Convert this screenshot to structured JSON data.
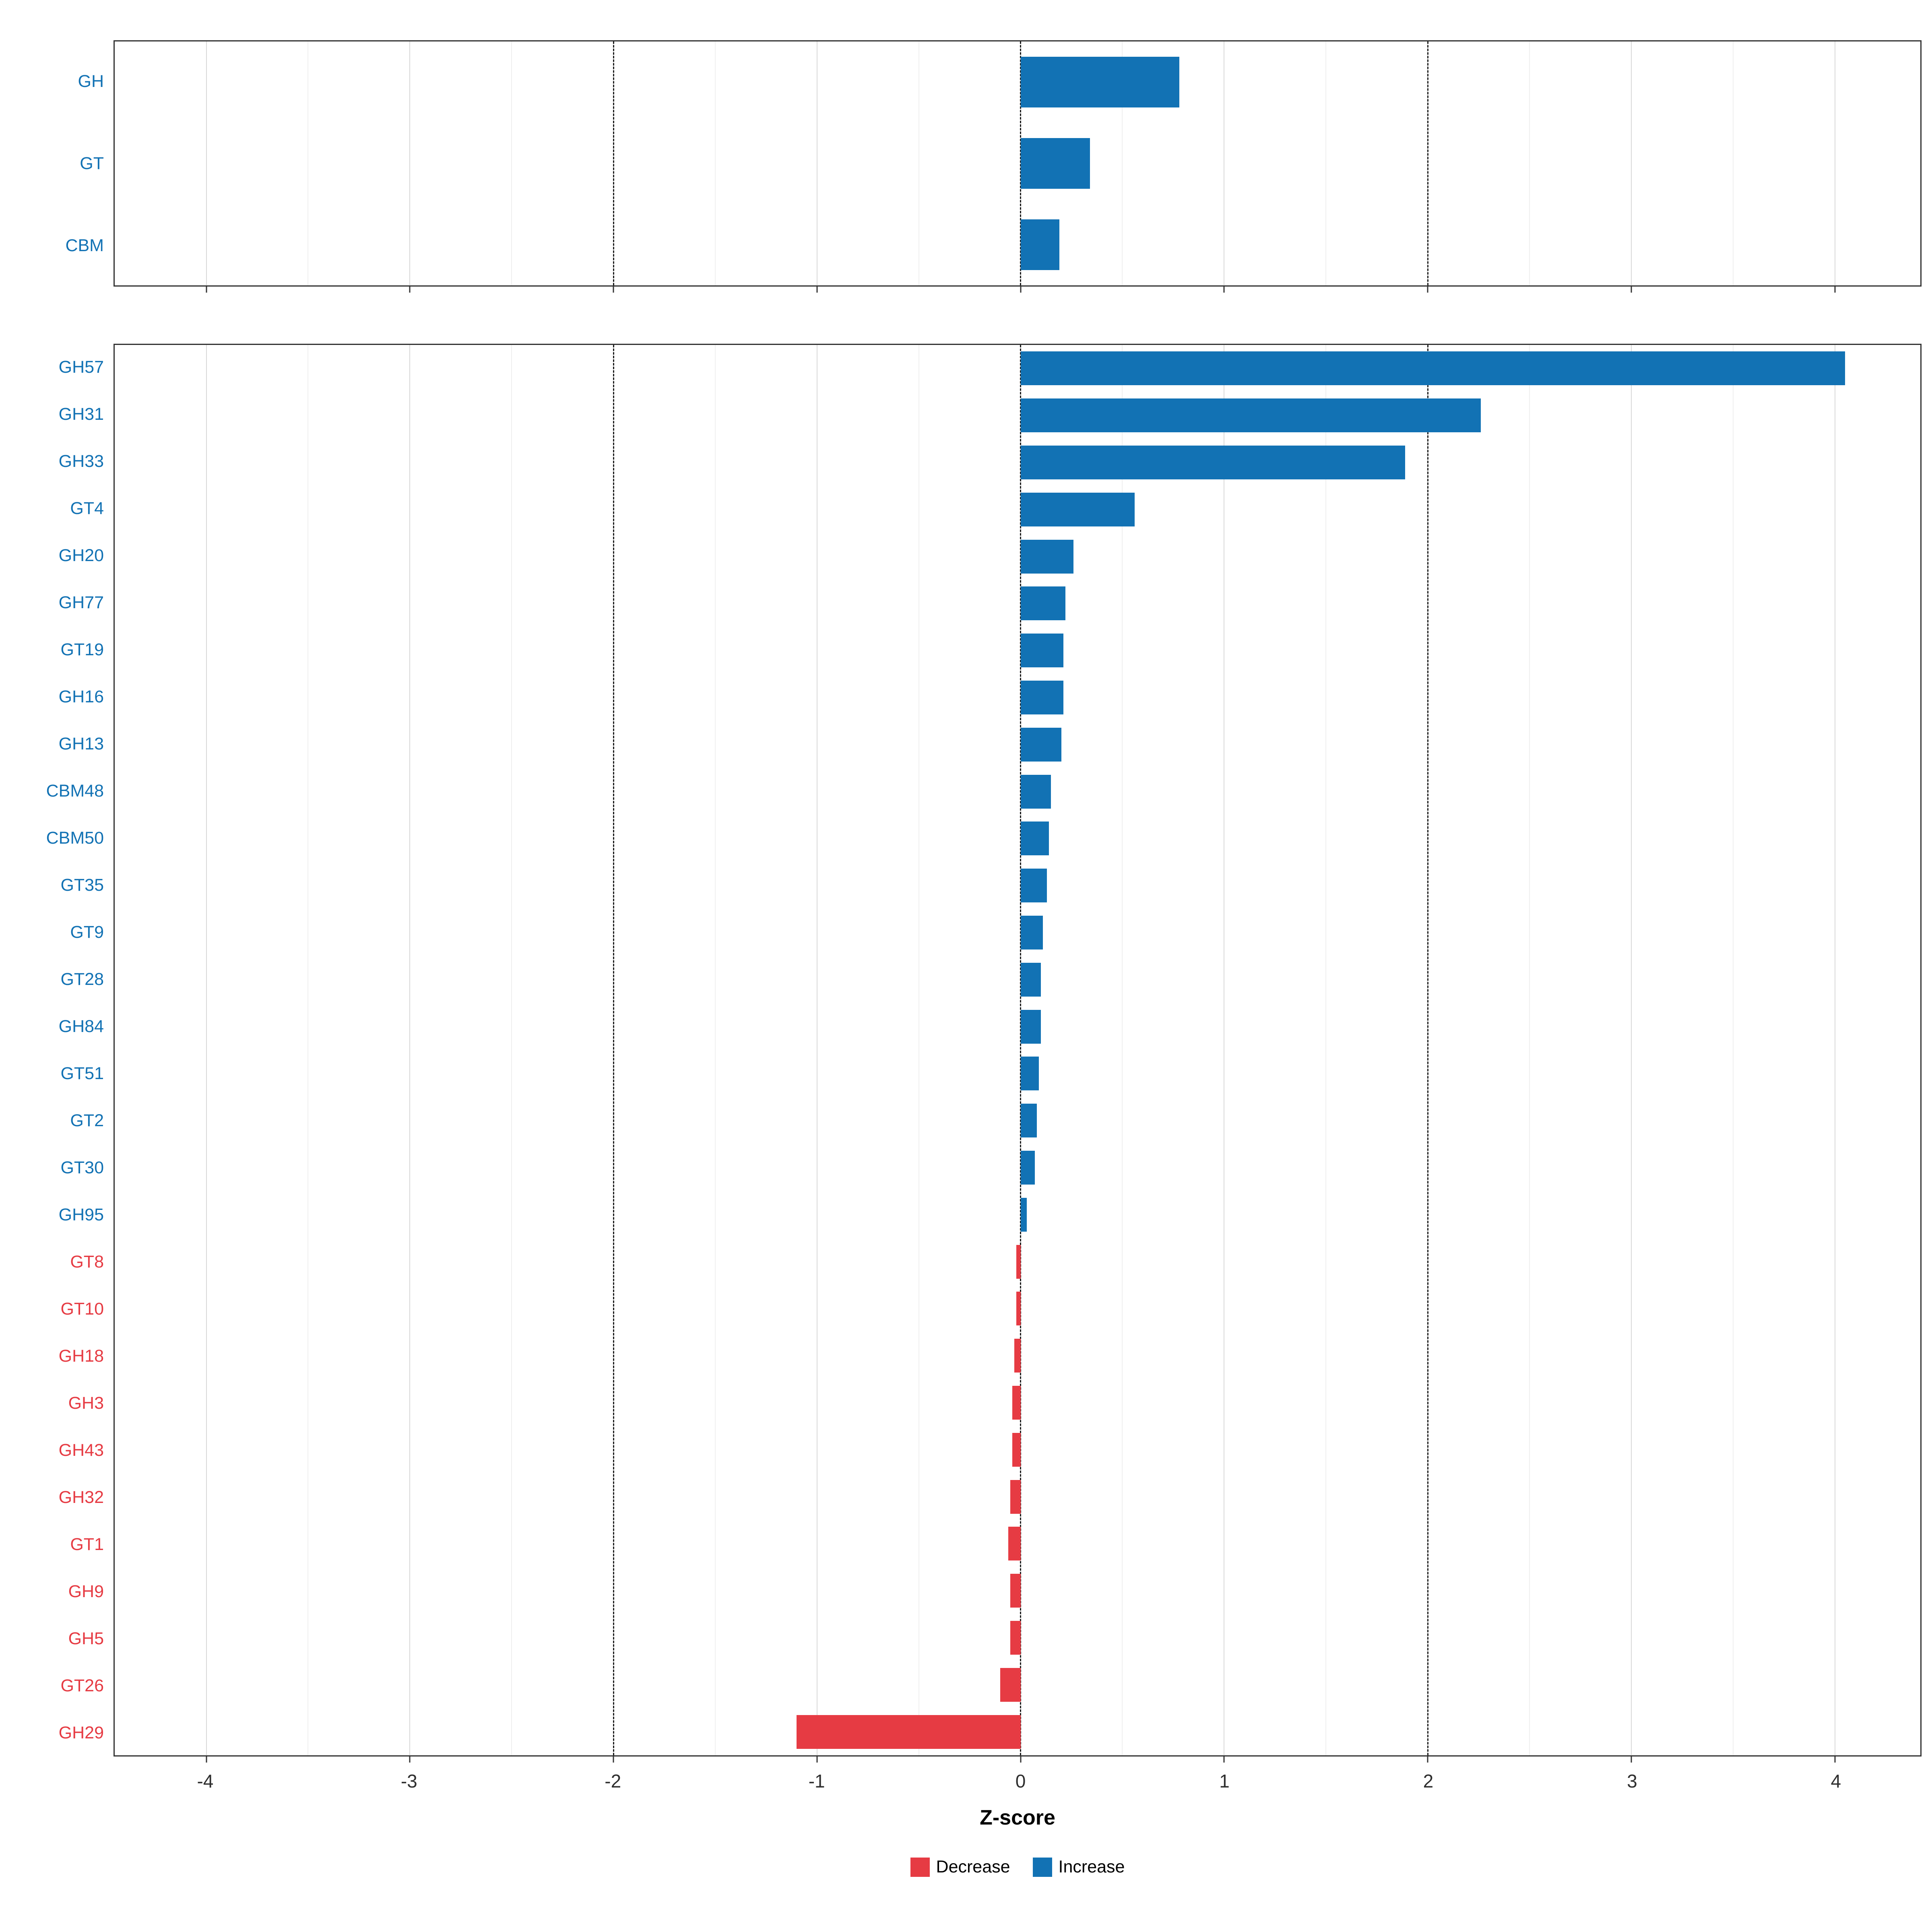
{
  "colors": {
    "increase": "#1272B4",
    "decrease": "#E63B43",
    "grid_major": "#d8d8d8",
    "grid_minor": "#efefef",
    "panel_border": "#333333",
    "threshold_line": "#1a1a1a"
  },
  "chart_data": {
    "type": "bar",
    "orientation": "horizontal",
    "title": "",
    "xlabel": "Z-score",
    "ylabel": "",
    "axis": {
      "xmin": -4.45,
      "xmax": 4.42,
      "ticks": [
        -4,
        -3,
        -2,
        -1,
        0,
        1,
        2,
        3,
        4
      ],
      "minor_ticks": [
        -3.5,
        -2.5,
        -1.5,
        -0.5,
        0.5,
        1.5,
        2.5,
        3.5
      ],
      "dashed_at": [
        -2,
        0,
        2
      ]
    },
    "legend": [
      {
        "label": "Decrease",
        "key": "decrease"
      },
      {
        "label": "Increase",
        "key": "increase"
      }
    ],
    "legend_position": "bottom",
    "grid": true,
    "panels": [
      {
        "name": "cazyme-classes",
        "rows": [
          {
            "label": "GH",
            "value": 0.78,
            "direction": "increase"
          },
          {
            "label": "GT",
            "value": 0.34,
            "direction": "increase"
          },
          {
            "label": "CBM",
            "value": 0.19,
            "direction": "increase"
          }
        ]
      },
      {
        "name": "cazyme-families",
        "rows": [
          {
            "label": "GH57",
            "value": 4.05,
            "direction": "increase"
          },
          {
            "label": "GH31",
            "value": 2.26,
            "direction": "increase"
          },
          {
            "label": "GH33",
            "value": 1.89,
            "direction": "increase"
          },
          {
            "label": "GT4",
            "value": 0.56,
            "direction": "increase"
          },
          {
            "label": "GH20",
            "value": 0.26,
            "direction": "increase"
          },
          {
            "label": "GH77",
            "value": 0.22,
            "direction": "increase"
          },
          {
            "label": "GT19",
            "value": 0.21,
            "direction": "increase"
          },
          {
            "label": "GH16",
            "value": 0.21,
            "direction": "increase"
          },
          {
            "label": "GH13",
            "value": 0.2,
            "direction": "increase"
          },
          {
            "label": "CBM48",
            "value": 0.15,
            "direction": "increase"
          },
          {
            "label": "CBM50",
            "value": 0.14,
            "direction": "increase"
          },
          {
            "label": "GT35",
            "value": 0.13,
            "direction": "increase"
          },
          {
            "label": "GT9",
            "value": 0.11,
            "direction": "increase"
          },
          {
            "label": "GT28",
            "value": 0.1,
            "direction": "increase"
          },
          {
            "label": "GH84",
            "value": 0.1,
            "direction": "increase"
          },
          {
            "label": "GT51",
            "value": 0.09,
            "direction": "increase"
          },
          {
            "label": "GT2",
            "value": 0.08,
            "direction": "increase"
          },
          {
            "label": "GT30",
            "value": 0.07,
            "direction": "increase"
          },
          {
            "label": "GH95",
            "value": 0.03,
            "direction": "increase"
          },
          {
            "label": "GT8",
            "value": -0.02,
            "direction": "decrease"
          },
          {
            "label": "GT10",
            "value": -0.02,
            "direction": "decrease"
          },
          {
            "label": "GH18",
            "value": -0.03,
            "direction": "decrease"
          },
          {
            "label": "GH3",
            "value": -0.04,
            "direction": "decrease"
          },
          {
            "label": "GH43",
            "value": -0.04,
            "direction": "decrease"
          },
          {
            "label": "GH32",
            "value": -0.05,
            "direction": "decrease"
          },
          {
            "label": "GT1",
            "value": -0.06,
            "direction": "decrease"
          },
          {
            "label": "GH9",
            "value": -0.05,
            "direction": "decrease"
          },
          {
            "label": "GH5",
            "value": -0.05,
            "direction": "decrease"
          },
          {
            "label": "GT26",
            "value": -0.1,
            "direction": "decrease"
          },
          {
            "label": "GH29",
            "value": -1.1,
            "direction": "decrease"
          }
        ]
      }
    ]
  }
}
